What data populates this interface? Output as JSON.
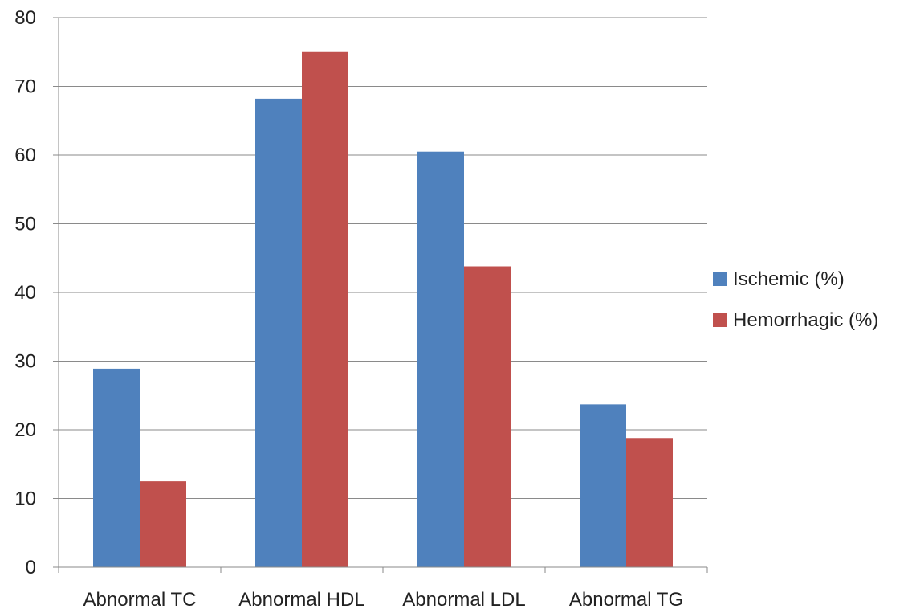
{
  "chart_data": {
    "type": "bar",
    "categories": [
      "Abnormal TC",
      "Abnormal HDL",
      "Abnormal LDL",
      "Abnormal TG"
    ],
    "series": [
      {
        "name": "Ischemic (%)",
        "values": [
          28.9,
          68.2,
          60.5,
          23.7
        ],
        "color": "#4F81BD"
      },
      {
        "name": "Hemorrhagic (%)",
        "values": [
          12.5,
          75.0,
          43.8,
          18.8
        ],
        "color": "#C0504D"
      }
    ],
    "title": "",
    "xlabel": "",
    "ylabel": "",
    "ylim": [
      0,
      80
    ],
    "yticks": [
      0,
      10,
      20,
      30,
      40,
      50,
      60,
      70,
      80
    ],
    "grid": true,
    "legend_position": "right"
  }
}
